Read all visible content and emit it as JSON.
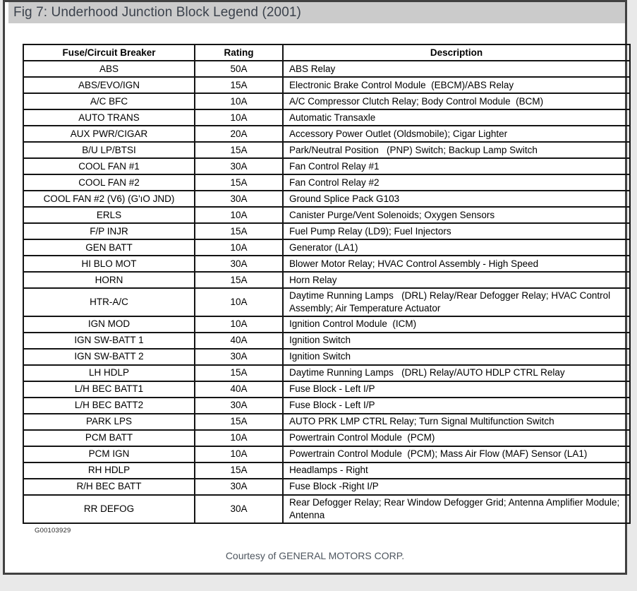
{
  "figure": {
    "title": "Fig 7: Underhood Junction Block Legend (2001)",
    "figure_id": "G00103929",
    "courtesy": "Courtesy of GENERAL MOTORS CORP."
  },
  "table": {
    "columns": [
      "Fuse/Circuit Breaker",
      "Rating",
      "Description"
    ],
    "rows": [
      {
        "fuse": "ABS",
        "rating": "50A",
        "description": "ABS Relay"
      },
      {
        "fuse": "ABS/EVO/IGN",
        "rating": "15A",
        "description": "Electronic Brake Control Module  (EBCM)/ABS Relay"
      },
      {
        "fuse": "A/C BFC",
        "rating": "10A",
        "description": "A/C Compressor Clutch Relay; Body Control Module  (BCM)"
      },
      {
        "fuse": "AUTO TRANS",
        "rating": "10A",
        "description": "Automatic Transaxle"
      },
      {
        "fuse": "AUX PWR/CIGAR",
        "rating": "20A",
        "description": "Accessory Power Outlet (Oldsmobile); Cigar Lighter"
      },
      {
        "fuse": "B/U LP/BTSI",
        "rating": "15A",
        "description": "Park/Neutral Position   (PNP) Switch; Backup Lamp Switch"
      },
      {
        "fuse": "COOL FAN #1",
        "rating": "30A",
        "description": "Fan Control Relay #1"
      },
      {
        "fuse": "COOL FAN #2",
        "rating": "15A",
        "description": "Fan Control Relay #2"
      },
      {
        "fuse": "COOL FAN #2 (V6) (G'ıO JND)",
        "rating": "30A",
        "description": "Ground Splice Pack G103"
      },
      {
        "fuse": "ERLS",
        "rating": "10A",
        "description": "Canister Purge/Vent Solenoids; Oxygen Sensors"
      },
      {
        "fuse": "F/P INJR",
        "rating": "15A",
        "description": "Fuel Pump Relay (LD9); Fuel Injectors"
      },
      {
        "fuse": "GEN BATT",
        "rating": "10A",
        "description": "Generator (LA1)"
      },
      {
        "fuse": "HI BLO MOT",
        "rating": "30A",
        "description": "Blower Motor Relay; HVAC Control Assembly - High Speed"
      },
      {
        "fuse": "HORN",
        "rating": "15A",
        "description": "Horn Relay"
      },
      {
        "fuse": "HTR-A/C",
        "rating": "10A",
        "description": "Daytime Running Lamps   (DRL) Relay/Rear Defogger Relay; HVAC Control Assembly; Air Temperature Actuator"
      },
      {
        "fuse": "IGN MOD",
        "rating": "10A",
        "description": "Ignition Control Module  (ICM)"
      },
      {
        "fuse": "IGN SW-BATT 1",
        "rating": "40A",
        "description": "Ignition Switch"
      },
      {
        "fuse": "IGN SW-BATT 2",
        "rating": "30A",
        "description": "Ignition Switch"
      },
      {
        "fuse": "LH HDLP",
        "rating": "15A",
        "description": "Daytime Running Lamps   (DRL) Relay/AUTO HDLP CTRL Relay"
      },
      {
        "fuse": "L/H BEC BATT1",
        "rating": "40A",
        "description": "Fuse Block - Left I/P"
      },
      {
        "fuse": "L/H BEC BATT2",
        "rating": "30A",
        "description": "Fuse Block - Left I/P"
      },
      {
        "fuse": "PARK LPS",
        "rating": "15A",
        "description": "AUTO PRK LMP CTRL Relay; Turn Signal Multifunction Switch"
      },
      {
        "fuse": "PCM BATT",
        "rating": "10A",
        "description": "Powertrain Control Module  (PCM)"
      },
      {
        "fuse": "PCM IGN",
        "rating": "10A",
        "description": "Powertrain Control Module  (PCM); Mass Air Flow (MAF) Sensor (LA1)"
      },
      {
        "fuse": "RH HDLP",
        "rating": "15A",
        "description": "Headlamps - Right"
      },
      {
        "fuse": "R/H BEC BATT",
        "rating": "30A",
        "description": "Fuse Block -Right I/P"
      },
      {
        "fuse": "RR DEFOG",
        "rating": "30A",
        "description": "Rear Defogger Relay; Rear Window Defogger Grid; Antenna Amplifier Module; Antenna"
      }
    ]
  },
  "colors": {
    "outer_background": "#e9e9e9",
    "page_border": "#414141",
    "title_bar_background": "#cbcbcb",
    "title_text": "#3b424c",
    "table_border": "#141414",
    "table_text": "#000000",
    "courtesy_text": "#4d555e"
  }
}
